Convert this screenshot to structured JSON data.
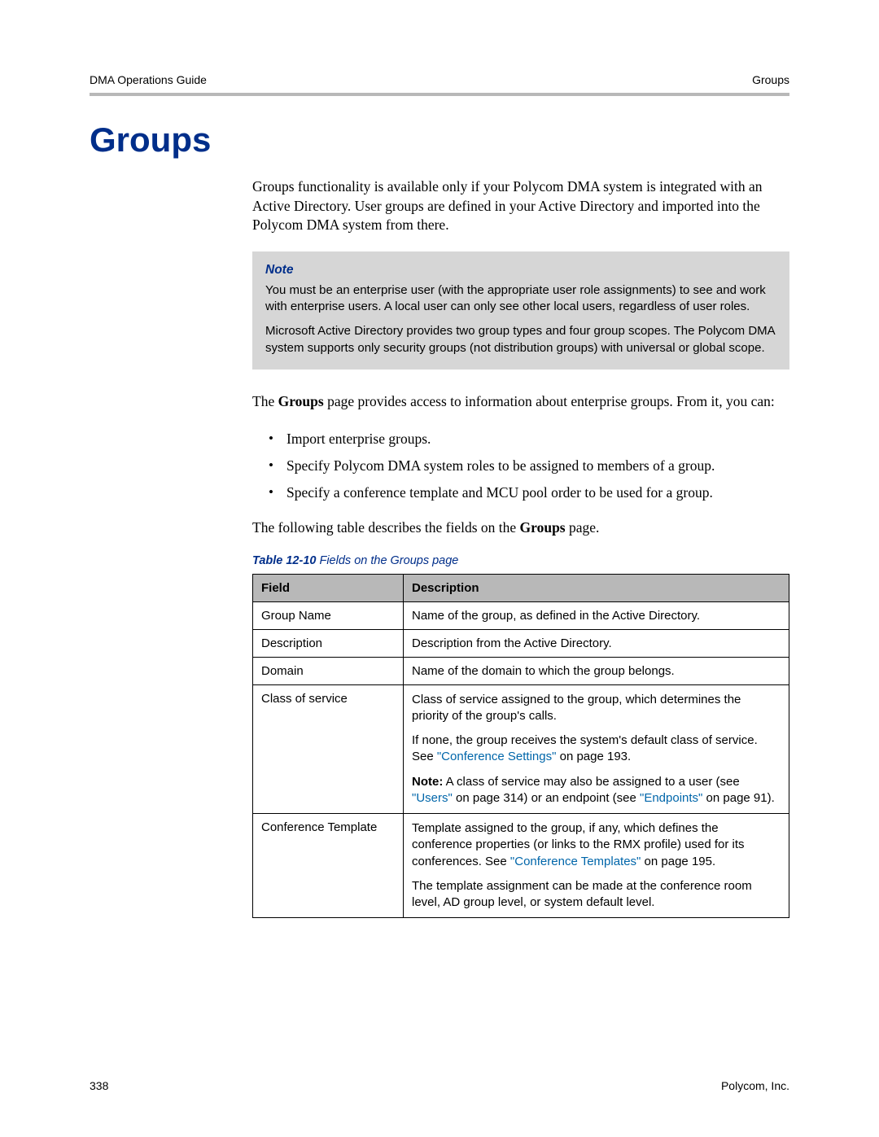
{
  "header": {
    "left": "DMA Operations Guide",
    "right": "Groups"
  },
  "title": "Groups",
  "intro": "Groups functionality is available only if your Polycom DMA system is integrated with an Active Directory. User groups are defined in your Active Directory and imported into the Polycom DMA system from there.",
  "note": {
    "label": "Note",
    "p1": "You must be an enterprise user (with the appropriate user role assignments) to see and work with enterprise users. A local user can only see other local users, regardless of user roles.",
    "p2": "Microsoft Active Directory provides two group types and four group scopes. The Polycom DMA system supports only security groups (not distribution groups) with universal or global scope."
  },
  "p_after_note_prefix": "The ",
  "p_after_note_bold": "Groups",
  "p_after_note_suffix": " page provides access to information about enterprise groups. From it, you can:",
  "bullets": [
    "Import enterprise groups.",
    "Specify Polycom DMA system roles to be assigned to members of a group.",
    "Specify a conference template and MCU pool order to be used for a group."
  ],
  "p_before_table_prefix": "The following table describes the fields on the ",
  "p_before_table_bold": "Groups",
  "p_before_table_suffix": " page.",
  "table": {
    "caption_bold": "Table 12-10",
    "caption_rest": "  Fields on the Groups page",
    "headers": {
      "field": "Field",
      "description": "Description"
    },
    "rows": {
      "r1": {
        "field": "Group Name",
        "desc": "Name of the group, as defined in the Active Directory."
      },
      "r2": {
        "field": "Description",
        "desc": "Description from the Active Directory."
      },
      "r3": {
        "field": "Domain",
        "desc": "Name of the domain to which the group belongs."
      },
      "r4": {
        "field": "Class of service",
        "p1": "Class of service assigned to the group, which determines the priority of the group's calls.",
        "p2a": "If none, the group receives the system's default class of service. See ",
        "p2_link": "\"Conference Settings\"",
        "p2b": " on page 193.",
        "p3_bold": "Note:",
        "p3a": " A class of service may also be assigned to a user (see ",
        "p3_link1": "\"Users\"",
        "p3b": " on page 314) or an endpoint (see ",
        "p3_link2": "\"Endpoints\"",
        "p3c": " on page 91)."
      },
      "r5": {
        "field": "Conference Template",
        "p1a": "Template assigned to the group, if any, which defines the conference properties (or links to the RMX profile) used for its conferences. See ",
        "p1_link": "\"Conference Templates\"",
        "p1b": " on page 195.",
        "p2": "The template assignment can be made at the conference room level, AD group level, or system default level."
      }
    }
  },
  "footer": {
    "page": "338",
    "company": "Polycom, Inc."
  }
}
